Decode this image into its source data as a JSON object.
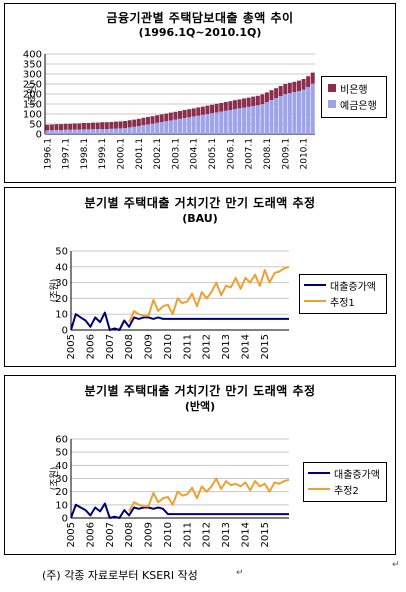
{
  "chart_data": [
    {
      "type": "bar",
      "title": "금융기관별 주택담보대출 총액 추이",
      "subtitle": "(1996.1Q~2010.1Q)",
      "ylabel": "(조원)",
      "ylim": [
        0,
        400
      ],
      "yticks": [
        0,
        50,
        100,
        150,
        200,
        250,
        300,
        350,
        400
      ],
      "grid": true,
      "legend": "right",
      "stacked": true,
      "x_tick_labels": [
        "1996.1",
        "1997.1",
        "1998.1",
        "1999.1",
        "2000.1",
        "2001.1",
        "2002.1",
        "2003.1",
        "2004.1",
        "2005.1",
        "2006.1",
        "2007.1",
        "2008.1",
        "2009.1",
        "2010.1"
      ],
      "series": [
        {
          "name": "비은행",
          "color": "#8b2e4e",
          "values": [
            28,
            28,
            29,
            29,
            30,
            30,
            31,
            31,
            32,
            32,
            33,
            33,
            34,
            34,
            34,
            35,
            35,
            35,
            36,
            36,
            36,
            37,
            37,
            37,
            38,
            38,
            38,
            39,
            39,
            39,
            40,
            40,
            40,
            41,
            41,
            42,
            42,
            43,
            43,
            44,
            44,
            45,
            45,
            46,
            46,
            47,
            47,
            48,
            48,
            49,
            49,
            50,
            50,
            51,
            51,
            52,
            53,
            54,
            55
          ]
        },
        {
          "name": "예금은행",
          "color": "#9da4ea",
          "values": [
            18,
            19,
            20,
            20,
            21,
            21,
            22,
            22,
            23,
            23,
            24,
            24,
            25,
            25,
            26,
            27,
            28,
            30,
            33,
            36,
            40,
            44,
            48,
            52,
            56,
            60,
            64,
            68,
            72,
            76,
            80,
            84,
            88,
            92,
            96,
            100,
            104,
            108,
            112,
            116,
            120,
            124,
            128,
            132,
            136,
            140,
            144,
            150,
            160,
            170,
            180,
            190,
            200,
            205,
            210,
            215,
            222,
            235,
            252
          ]
        }
      ]
    },
    {
      "type": "line",
      "title": "분기별 주택대출 거치기간 만기 도래액 추정",
      "subtitle": "(BAU)",
      "ylabel": "(조원)",
      "ylim": [
        0,
        50
      ],
      "yticks": [
        0,
        10,
        20,
        30,
        40,
        50
      ],
      "grid": true,
      "legend": "right",
      "x_tick_labels": [
        "2005",
        "2006",
        "2007",
        "2008",
        "2009",
        "2010",
        "2011",
        "2012",
        "2013",
        "2014",
        "2015"
      ],
      "series": [
        {
          "name": "대출증가액",
          "color": "#00007a",
          "values": [
            0,
            10,
            8,
            6,
            2,
            8,
            5,
            11,
            0,
            1,
            0,
            6,
            2,
            8,
            7,
            8,
            8,
            7,
            8,
            7,
            7,
            7,
            7,
            7,
            7,
            7,
            7,
            7,
            7,
            7,
            7,
            7,
            7,
            7,
            7,
            7,
            7,
            7,
            7,
            7,
            7,
            7,
            7,
            7,
            7,
            7
          ]
        },
        {
          "name": "추정1",
          "color": "#f0a030",
          "values": [
            null,
            null,
            null,
            null,
            null,
            null,
            null,
            null,
            null,
            null,
            null,
            null,
            5,
            12,
            10,
            9,
            9,
            19,
            12,
            15,
            16,
            10,
            20,
            17,
            18,
            23,
            15,
            24,
            20,
            24,
            30,
            22,
            28,
            27,
            33,
            26,
            33,
            30,
            35,
            28,
            38,
            30,
            36,
            37,
            39,
            40
          ]
        }
      ]
    },
    {
      "type": "line",
      "title": "분기별 주택대출 거치기간 만기 도래액 추정",
      "subtitle": "(반액)",
      "ylabel": "(조원)",
      "ylim": [
        0,
        60
      ],
      "yticks": [
        0,
        10,
        20,
        30,
        40,
        50,
        60
      ],
      "grid": true,
      "legend": "right",
      "x_tick_labels": [
        "2005",
        "2006",
        "2007",
        "2008",
        "2009",
        "2010",
        "2011",
        "2012",
        "2013",
        "2014",
        "2015"
      ],
      "series": [
        {
          "name": "대출증가액",
          "color": "#00007a",
          "values": [
            0,
            10,
            8,
            6,
            2,
            8,
            5,
            11,
            0,
            1,
            0,
            6,
            2,
            8,
            7,
            8,
            8,
            7,
            8,
            7,
            3,
            3,
            3,
            3,
            3,
            3,
            3,
            3,
            3,
            3,
            3,
            3,
            3,
            3,
            3,
            3,
            3,
            3,
            3,
            3,
            3,
            3,
            3,
            3,
            3,
            3
          ]
        },
        {
          "name": "추정2",
          "color": "#f0a030",
          "values": [
            null,
            null,
            null,
            null,
            null,
            null,
            null,
            null,
            null,
            null,
            null,
            null,
            5,
            12,
            10,
            9,
            9,
            19,
            12,
            15,
            16,
            10,
            20,
            17,
            18,
            23,
            15,
            24,
            20,
            24,
            30,
            22,
            28,
            25,
            26,
            24,
            27,
            21,
            28,
            24,
            26,
            20,
            27,
            26,
            28,
            29
          ]
        }
      ]
    }
  ],
  "note": "(주) 각종 자료로부터 KSERI 작성",
  "return_mark": "↵"
}
